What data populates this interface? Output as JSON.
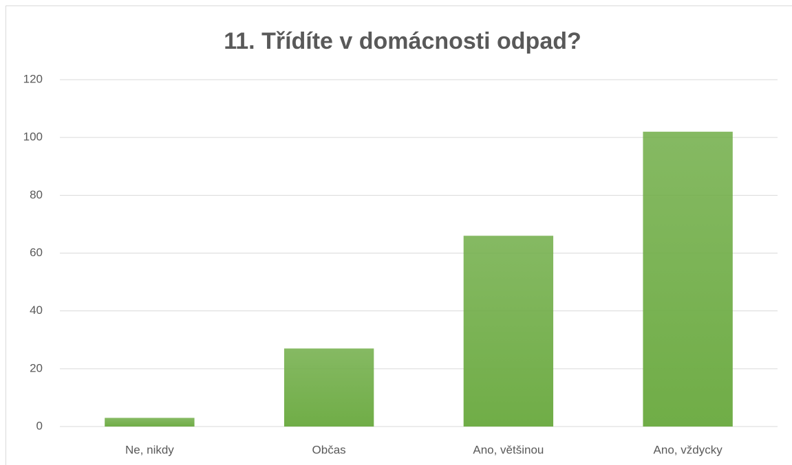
{
  "chart_data": {
    "type": "bar",
    "title": "11. Třídíte v domácnosti odpad?",
    "categories": [
      "Ne, nikdy",
      "Občas",
      "Ano, většinou",
      "Ano, vždycky"
    ],
    "values": [
      3,
      27,
      66,
      102
    ],
    "color": "#70ad47",
    "ylim": [
      0,
      120
    ],
    "yticks": [
      0,
      20,
      40,
      60,
      80,
      100,
      120
    ],
    "grid": true
  }
}
